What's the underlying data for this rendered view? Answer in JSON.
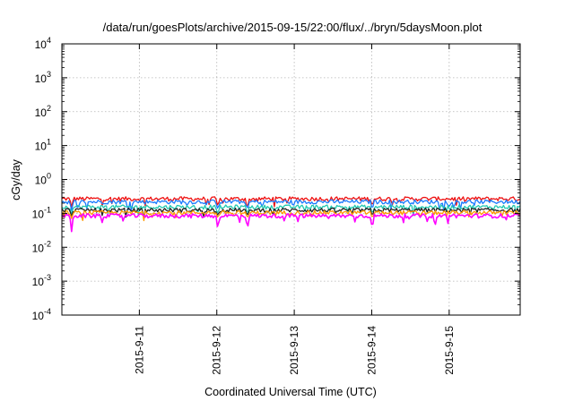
{
  "chart_data": {
    "type": "line",
    "title": "/data/run/goesPlots/archive/2015-09-15/22:00/flux/../bryn/5daysMoon.plot",
    "xlabel": "Coordinated Universal Time (UTC)",
    "ylabel": "cGy/day",
    "yscale": "log",
    "ylim": [
      0.0001,
      10000
    ],
    "xlim": [
      "2015-09-10T00:00",
      "2015-09-15T22:00"
    ],
    "x_ticks": [
      "2015-9-11",
      "2015-9-12",
      "2015-9-13",
      "2015-9-14",
      "2015-9-15"
    ],
    "y_ticks": [
      {
        "base": "10",
        "exp": "-4"
      },
      {
        "base": "10",
        "exp": "-3"
      },
      {
        "base": "10",
        "exp": "-2"
      },
      {
        "base": "10",
        "exp": "-1"
      },
      {
        "base": "10",
        "exp": "0"
      },
      {
        "base": "10",
        "exp": "1"
      },
      {
        "base": "10",
        "exp": "2"
      },
      {
        "base": "10",
        "exp": "3"
      },
      {
        "base": "10",
        "exp": "4"
      }
    ],
    "grid": true,
    "series": [
      {
        "color": "#ee1111",
        "level": 0.27,
        "dips": 0.15
      },
      {
        "color": "#1a7aff",
        "level": 0.22,
        "dips": 0.12
      },
      {
        "color": "#22c9b0",
        "level": 0.155,
        "dips": 0.09
      },
      {
        "color": "#222222",
        "level": 0.125,
        "dips": 0.08
      },
      {
        "color": "#ff9900",
        "level": 0.105,
        "dips": 0.07
      },
      {
        "color": "#ff00ff",
        "level": 0.085,
        "dips": 0.028
      }
    ],
    "notable_minima": [
      {
        "x": "2015-09-10T03:00",
        "y": 0.045
      },
      {
        "x": "2015-09-12T00:20",
        "y": 0.028
      },
      {
        "x": "2015-09-12T09:30",
        "y": 0.03
      },
      {
        "x": "2015-09-14T00:10",
        "y": 0.03
      }
    ]
  }
}
